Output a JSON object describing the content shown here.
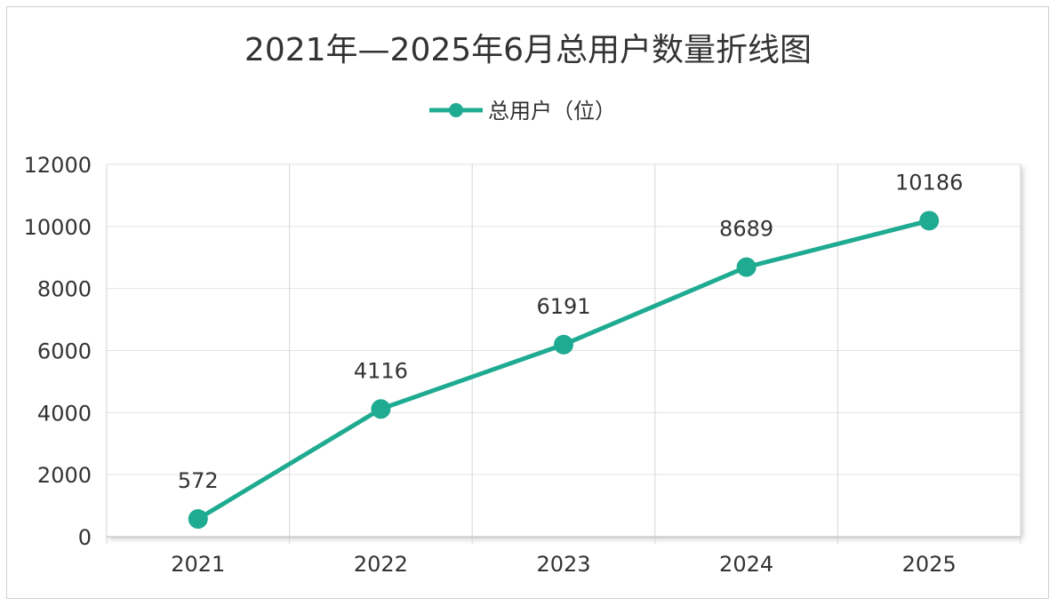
{
  "chart_data": {
    "type": "line",
    "title": "2021年—2025年6月总用户数量折线图",
    "legend": {
      "label": "总用户（位）",
      "placement": "top-center"
    },
    "categories": [
      "2021",
      "2022",
      "2023",
      "2024",
      "2025"
    ],
    "series": [
      {
        "name": "总用户（位）",
        "values": [
          572,
          4116,
          6191,
          8689,
          10186
        ],
        "color": "#1fab91"
      }
    ],
    "yticks": [
      "0",
      "2000",
      "4000",
      "6000",
      "8000",
      "10000",
      "12000"
    ],
    "ylim": [
      0,
      12000
    ],
    "xlabel": "",
    "ylabel": "",
    "grid": true
  }
}
